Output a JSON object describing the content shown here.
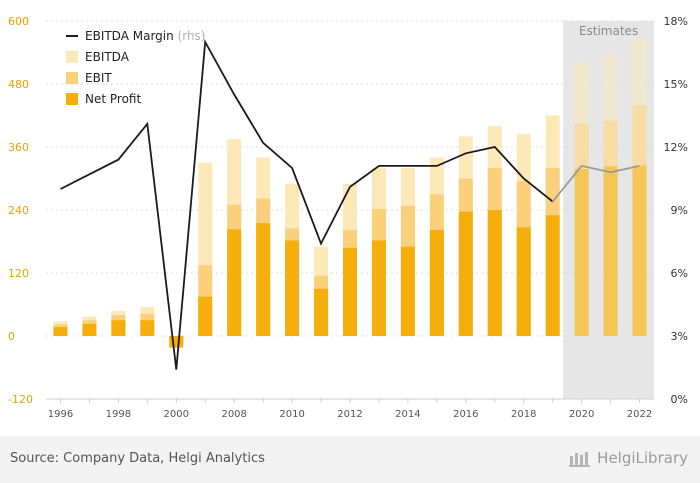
{
  "chart_data": {
    "type": "bar",
    "categories": [
      "1996",
      "1997",
      "1998",
      "1999",
      "2000",
      "2001",
      "2008",
      "2009",
      "2010",
      "2011",
      "2012",
      "2013",
      "2014",
      "2015",
      "2016",
      "2017",
      "2018",
      "2019",
      "2020",
      "2021",
      "2022"
    ],
    "x_tick_labels": [
      "1996",
      "1998",
      "2000",
      "2008",
      "2010",
      "2012",
      "2014",
      "2016",
      "2018",
      "2020",
      "2022"
    ],
    "series": [
      {
        "name": "EBITDA",
        "axis": "left",
        "values": [
          28,
          37,
          48,
          55,
          -10,
          330,
          375,
          340,
          290,
          170,
          290,
          320,
          320,
          340,
          380,
          400,
          385,
          420,
          520,
          535,
          565
        ]
      },
      {
        "name": "EBIT",
        "axis": "left",
        "values": [
          22,
          30,
          40,
          42,
          -12,
          135,
          250,
          262,
          205,
          115,
          202,
          242,
          248,
          270,
          300,
          320,
          295,
          320,
          405,
          410,
          440
        ]
      },
      {
        "name": "Net Profit",
        "axis": "left",
        "values": [
          17,
          23,
          30,
          30,
          -22,
          75,
          203,
          215,
          182,
          90,
          168,
          182,
          170,
          202,
          237,
          240,
          207,
          230,
          318,
          323,
          325
        ]
      },
      {
        "name": "EBITDA Margin",
        "axis": "right",
        "type": "line",
        "values": [
          10.0,
          10.7,
          11.4,
          13.1,
          1.4,
          17.0,
          14.5,
          12.2,
          11.0,
          7.4,
          10.1,
          11.1,
          11.1,
          11.1,
          11.7,
          12.0,
          10.5,
          9.4,
          11.1,
          10.8,
          11.1
        ]
      }
    ],
    "forecast_start_index": 18,
    "forecast_label": "Estimates",
    "ylim": [
      -120,
      600
    ],
    "yticks": [
      -120,
      0,
      120,
      240,
      360,
      480,
      600
    ],
    "y2lim": [
      0,
      18
    ],
    "y2ticks": [
      "0%",
      "3%",
      "6%",
      "9%",
      "12%",
      "15%",
      "18%"
    ],
    "legend": [
      {
        "name": "EBITDA Margin",
        "suffix": "(rhs)",
        "kind": "line"
      },
      {
        "name": "EBITDA",
        "kind": "box"
      },
      {
        "name": "EBIT",
        "kind": "box"
      },
      {
        "name": "Net Profit",
        "kind": "box"
      }
    ],
    "legend_position": "top-left",
    "colors": {
      "ebitda": "#fde9b8",
      "ebit": "#fbd07a",
      "net_profit": "#f6ae0c",
      "margin_line": "#1a1a1a",
      "margin_line_forecast": "#9a9a9a",
      "forecast_band": "#e6e6e6",
      "left_axis_text": "#e8a200",
      "right_axis_text": "#333333",
      "forecast_label_text": "#8a8a8a"
    }
  },
  "footer": {
    "source": "Source: Company Data, Helgi Analytics",
    "brand": "HelgiLibrary"
  }
}
